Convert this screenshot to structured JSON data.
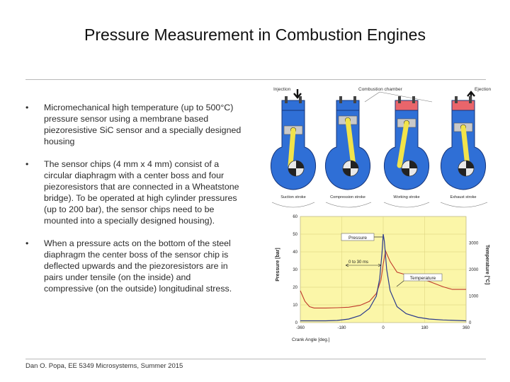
{
  "slide": {
    "title": "Pressure Measurement in Combustion Engines",
    "bullets": [
      {
        "marker": "•",
        "text": "Micromechanical high temperature (up to 500°C) pressure sensor using a membrane based piezoresistive SiC sensor and a specially designed housing"
      },
      {
        "marker": "•",
        "text": "The sensor chips (4 mm x 4 mm) consist of a circular diaphragm with a center boss and four piezoresistors that are connected in a Wheatstone bridge). To be operated at high cylinder pressures (up to 200 bar), the sensor chips need to be mounted into a specially designed housing)."
      },
      {
        "marker": "•",
        "text": "When a pressure acts on the bottom of the steel diaphragm the center boss of the sensor chip is deflected upwards and the piezoresistors are in pairs under tensile (on the inside) and compressive (on the outside) longitudinal stress."
      }
    ],
    "footer": "Dan O. Popa, EE 5349 Microsystems, Summer 2015"
  },
  "engine_diagram": {
    "labels": {
      "injection": "Injection",
      "combustion_chamber": "Combustion chamber",
      "ejection": "Ejection"
    },
    "strokes": [
      "Suction stroke",
      "Compression stroke",
      "Working stroke",
      "Exhaust stroke"
    ],
    "colors": {
      "engine_body": "#2f6fd6",
      "body_outline": "#16357a",
      "crank_arm": "#f2e34a",
      "hot_chamber": "#e9656b",
      "cold_chamber": "#2f6fd6"
    }
  },
  "chart_data": {
    "type": "line",
    "xlabel": "Crank Angle [deg.]",
    "ylabel": "Pressure [bar]",
    "y2label": "Temperature [°C]",
    "x_ticks": [
      "-360",
      "-180",
      "0",
      "180",
      "360"
    ],
    "y_ticks": [
      "0",
      "10",
      "20",
      "30",
      "40",
      "50",
      "60"
    ],
    "y2_ticks": [
      "0",
      "1000",
      "2000",
      "3000"
    ],
    "xlim": [
      -360,
      360
    ],
    "ylim": [
      0,
      60
    ],
    "y2lim": [
      0,
      4000
    ],
    "background": "#fbf6a8",
    "annotations": {
      "pressure": "Pressure",
      "temperature": "Temperature",
      "interval": "0 to 30 ms"
    },
    "series": [
      {
        "name": "Pressure",
        "axis": "left",
        "color": "#2b3a8c",
        "x": [
          -360,
          -300,
          -250,
          -200,
          -150,
          -100,
          -60,
          -30,
          -15,
          -5,
          0,
          5,
          15,
          30,
          60,
          100,
          150,
          200,
          260,
          320,
          360
        ],
        "y": [
          1,
          1,
          1,
          1.2,
          2,
          4,
          8,
          15,
          25,
          40,
          50,
          46,
          30,
          18,
          9,
          5,
          3,
          2,
          1.5,
          1.2,
          1
        ]
      },
      {
        "name": "Temperature",
        "axis": "right",
        "color": "#c0392b",
        "x": [
          -360,
          -340,
          -320,
          -300,
          -250,
          -200,
          -150,
          -100,
          -60,
          -30,
          -10,
          0,
          10,
          30,
          60,
          100,
          150,
          200,
          260,
          300,
          360
        ],
        "y": [
          1200,
          800,
          600,
          550,
          550,
          560,
          580,
          650,
          800,
          1100,
          1600,
          2200,
          2700,
          2300,
          1900,
          1800,
          1700,
          1550,
          1350,
          1250,
          1250
        ]
      }
    ]
  }
}
